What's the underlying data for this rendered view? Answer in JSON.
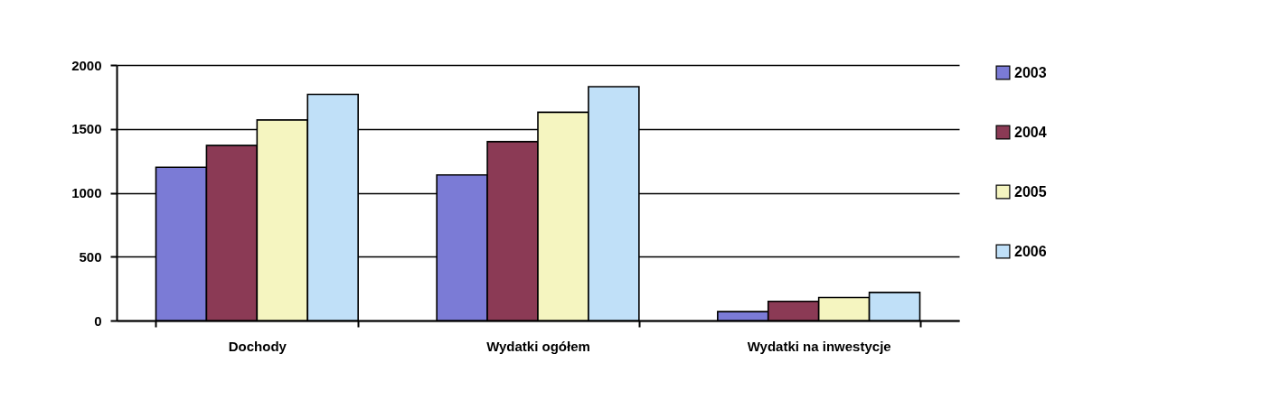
{
  "chart_data": {
    "type": "bar",
    "categories": [
      "Dochody",
      "Wydatki ogółem",
      "Wydatki na inwestycje"
    ],
    "series": [
      {
        "name": "2003",
        "color": "#7b7bd6",
        "values": [
          1200,
          1140,
          70
        ]
      },
      {
        "name": "2004",
        "color": "#8b3a55",
        "values": [
          1370,
          1400,
          150
        ]
      },
      {
        "name": "2005",
        "color": "#f5f5c0",
        "values": [
          1570,
          1630,
          180
        ]
      },
      {
        "name": "2006",
        "color": "#c0e0f8",
        "values": [
          1770,
          1830,
          220
        ]
      }
    ],
    "ylim": [
      0,
      2000
    ],
    "yticks": [
      0,
      500,
      1000,
      1500,
      2000
    ],
    "grid": "y",
    "legend": "right"
  }
}
